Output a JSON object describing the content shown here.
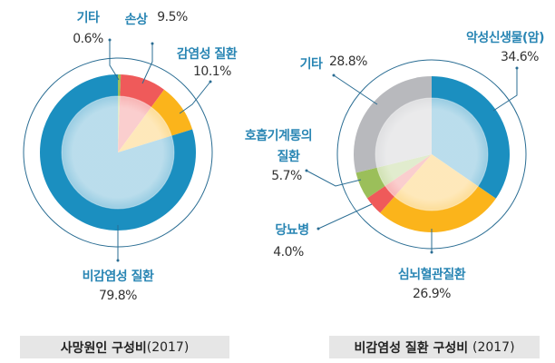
{
  "chart_data": [
    {
      "type": "pie",
      "title": "사망원인 구성비",
      "title_year": "(2017)",
      "slices": [
        {
          "label": "기타",
          "value": 0.6,
          "value_label": "0.6%",
          "color": "#9bbf5a"
        },
        {
          "label": "손상",
          "value": 9.5,
          "value_label": "9.5%",
          "color": "#ef5a5a"
        },
        {
          "label": "감염성 질환",
          "value": 10.1,
          "value_label": "10.1%",
          "color": "#fbb41b"
        },
        {
          "label": "비감염성 질환",
          "value": 79.8,
          "value_label": "79.8%",
          "color": "#1b8fc0"
        }
      ]
    },
    {
      "type": "pie",
      "title": "비감염성 질환 구성비",
      "title_year": "(2017)",
      "slices": [
        {
          "label": "악성신생물(암)",
          "value": 34.6,
          "value_label": "34.6%",
          "color": "#1b8fc0"
        },
        {
          "label": "심뇌혈관질환",
          "value": 26.9,
          "value_label": "26.9%",
          "color": "#fbb41b"
        },
        {
          "label": "당뇨병",
          "value": 4.0,
          "value_label": "4.0%",
          "color": "#ef5a5a"
        },
        {
          "label": "호흡기계통의 질환",
          "label_lines": [
            "호흡기계통의",
            "질환"
          ],
          "value": 5.7,
          "value_label": "5.7%",
          "color": "#9bbf5a"
        },
        {
          "label": "기타",
          "value": 28.8,
          "value_label": "28.8%",
          "color": "#b8b9bd"
        }
      ]
    }
  ]
}
